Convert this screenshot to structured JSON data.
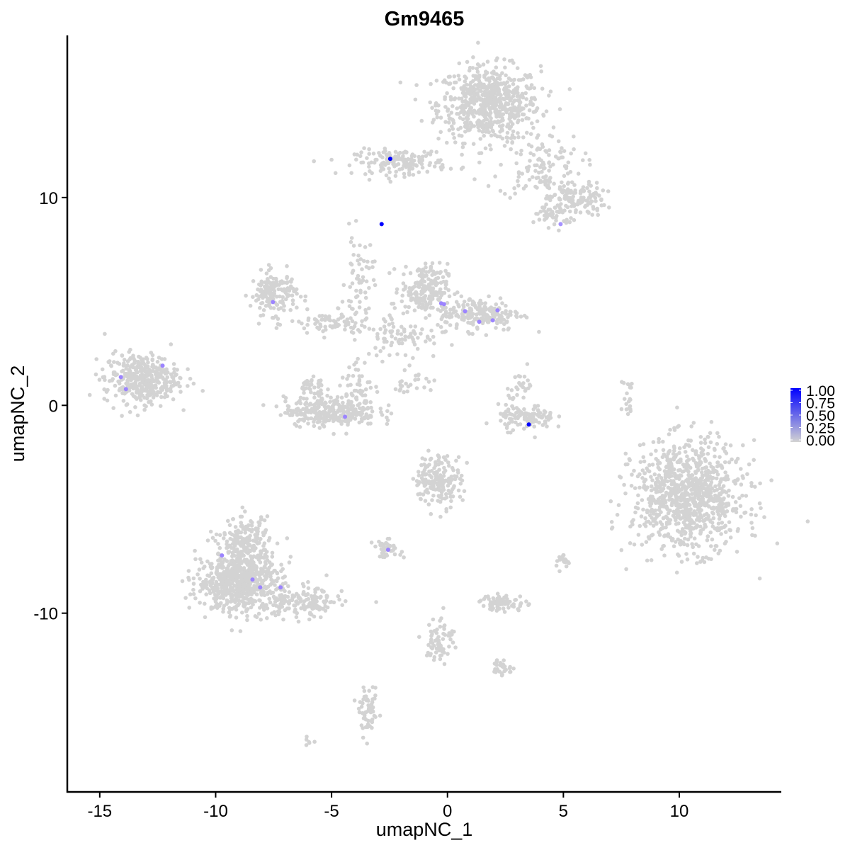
{
  "chart_data": {
    "type": "scatter",
    "title": "Gm9465",
    "xlabel": "umapNC_1",
    "ylabel": "umapNC_2",
    "xlim": [
      -16.4,
      14.4
    ],
    "ylim": [
      -18.6,
      17.8
    ],
    "xticks": [
      -15,
      -10,
      -5,
      0,
      5,
      10
    ],
    "yticks": [
      -10,
      0,
      10
    ],
    "grid": false,
    "legend": {
      "placement": "right",
      "type": "colorbar",
      "ticks": [
        "0.00",
        "0.25",
        "0.50",
        "0.75",
        "1.00"
      ],
      "low_color": "#d3d3d3",
      "high_color": "#0000ff"
    },
    "background_clusters": [
      {
        "x": 1.8,
        "y": 14.5,
        "sx": 1.1,
        "sy": 0.9,
        "n": 650
      },
      {
        "x": 4.0,
        "y": 11.5,
        "sx": 0.9,
        "sy": 0.8,
        "n": 120
      },
      {
        "x": 5.6,
        "y": 9.9,
        "sx": 0.6,
        "sy": 0.4,
        "n": 120
      },
      {
        "x": 4.6,
        "y": 9.2,
        "sx": 0.4,
        "sy": 0.3,
        "n": 50
      },
      {
        "x": -2.0,
        "y": 11.7,
        "sx": 1.0,
        "sy": 0.3,
        "n": 160
      },
      {
        "x": -7.5,
        "y": 5.4,
        "sx": 0.5,
        "sy": 0.5,
        "n": 160
      },
      {
        "x": -5.0,
        "y": 3.9,
        "sx": 0.9,
        "sy": 0.3,
        "n": 80
      },
      {
        "x": -3.8,
        "y": 6.0,
        "sx": 0.3,
        "sy": 1.1,
        "n": 60
      },
      {
        "x": -1.0,
        "y": 5.6,
        "sx": 0.5,
        "sy": 0.6,
        "n": 200
      },
      {
        "x": 1.4,
        "y": 4.4,
        "sx": 0.9,
        "sy": 0.4,
        "n": 200
      },
      {
        "x": -2.0,
        "y": 3.4,
        "sx": 0.8,
        "sy": 0.6,
        "n": 80
      },
      {
        "x": -13.2,
        "y": 1.3,
        "sx": 0.8,
        "sy": 0.6,
        "n": 380
      },
      {
        "x": -5.0,
        "y": -0.3,
        "sx": 1.0,
        "sy": 0.35,
        "n": 320
      },
      {
        "x": -5.9,
        "y": 0.8,
        "sx": 0.3,
        "sy": 0.4,
        "n": 40
      },
      {
        "x": -3.8,
        "y": 1.0,
        "sx": 0.3,
        "sy": 0.6,
        "n": 40
      },
      {
        "x": 3.4,
        "y": -0.6,
        "sx": 0.6,
        "sy": 0.3,
        "n": 110
      },
      {
        "x": 3.2,
        "y": 0.9,
        "sx": 0.3,
        "sy": 0.4,
        "n": 30
      },
      {
        "x": 10.4,
        "y": -4.4,
        "sx": 1.2,
        "sy": 1.3,
        "n": 950
      },
      {
        "x": -0.4,
        "y": -3.6,
        "sx": 0.5,
        "sy": 0.6,
        "n": 180
      },
      {
        "x": -9.0,
        "y": -8.5,
        "sx": 0.9,
        "sy": 0.7,
        "n": 650
      },
      {
        "x": -8.7,
        "y": -6.6,
        "sx": 0.5,
        "sy": 0.6,
        "n": 200
      },
      {
        "x": -6.3,
        "y": -9.5,
        "sx": 0.9,
        "sy": 0.4,
        "n": 160
      },
      {
        "x": -2.6,
        "y": -6.9,
        "sx": 0.3,
        "sy": 0.2,
        "n": 40
      },
      {
        "x": 2.4,
        "y": -9.5,
        "sx": 0.5,
        "sy": 0.2,
        "n": 70
      },
      {
        "x": -0.3,
        "y": -11.3,
        "sx": 0.3,
        "sy": 0.6,
        "n": 70
      },
      {
        "x": 2.3,
        "y": -12.6,
        "sx": 0.3,
        "sy": 0.2,
        "n": 30
      },
      {
        "x": -3.4,
        "y": -14.8,
        "sx": 0.2,
        "sy": 0.5,
        "n": 60
      },
      {
        "x": 7.8,
        "y": 0.3,
        "sx": 0.15,
        "sy": 0.5,
        "n": 20
      },
      {
        "x": 5.0,
        "y": -7.5,
        "sx": 0.2,
        "sy": 0.2,
        "n": 20
      },
      {
        "x": -6.0,
        "y": -16.2,
        "sx": 0.15,
        "sy": 0.1,
        "n": 6
      },
      {
        "x": -1.6,
        "y": 1.2,
        "sx": 0.5,
        "sy": 0.3,
        "n": 25
      }
    ],
    "expressing_points": [
      {
        "x": -2.47,
        "y": 11.86,
        "value": 1.0
      },
      {
        "x": -2.84,
        "y": 8.72,
        "value": 1.0
      },
      {
        "x": 3.51,
        "y": -0.92,
        "value": 1.0
      },
      {
        "x": 4.88,
        "y": 8.72,
        "value": 0.5
      },
      {
        "x": -7.53,
        "y": 4.97,
        "value": 0.6
      },
      {
        "x": -0.27,
        "y": 4.91,
        "value": 0.6
      },
      {
        "x": -0.15,
        "y": 4.87,
        "value": 0.6
      },
      {
        "x": 0.76,
        "y": 4.53,
        "value": 0.6
      },
      {
        "x": 1.37,
        "y": 4.02,
        "value": 0.6
      },
      {
        "x": 1.95,
        "y": 4.09,
        "value": 0.6
      },
      {
        "x": 2.16,
        "y": 4.57,
        "value": 0.6
      },
      {
        "x": -12.29,
        "y": 1.91,
        "value": 0.6
      },
      {
        "x": -14.09,
        "y": 1.36,
        "value": 0.6
      },
      {
        "x": -13.87,
        "y": 0.78,
        "value": 0.6
      },
      {
        "x": -4.42,
        "y": -0.55,
        "value": 0.6
      },
      {
        "x": -2.56,
        "y": -6.95,
        "value": 0.6
      },
      {
        "x": -9.73,
        "y": -7.22,
        "value": 0.6
      },
      {
        "x": -8.41,
        "y": -8.38,
        "value": 0.6
      },
      {
        "x": -8.08,
        "y": -8.76,
        "value": 0.6
      },
      {
        "x": -7.2,
        "y": -8.76,
        "value": 0.6
      }
    ]
  }
}
